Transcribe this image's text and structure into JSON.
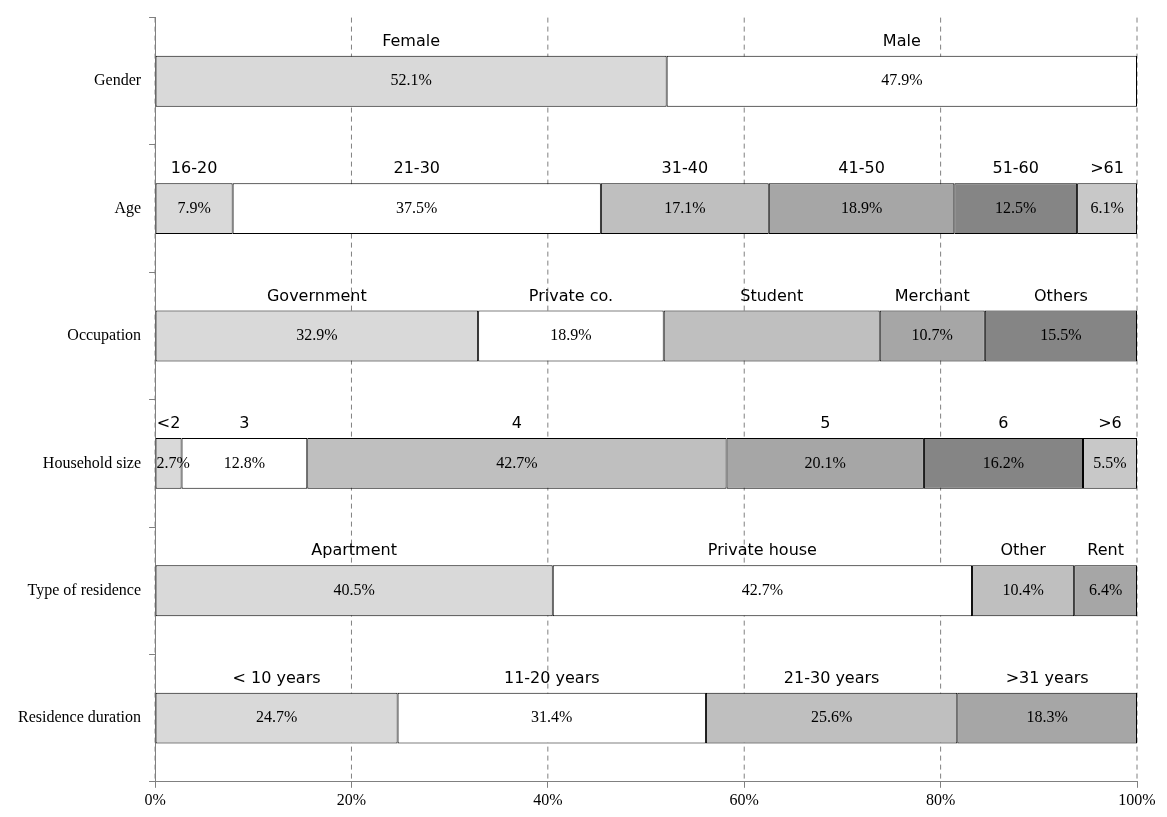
{
  "chart_data": {
    "type": "bar",
    "orientation": "horizontal",
    "stacked": true,
    "grid": "x",
    "categories": [
      "Gender",
      "Age",
      "Occupation",
      "Household size",
      "Type of residence",
      "Residence duration"
    ],
    "series": [
      {
        "color": "#d9d9d9",
        "values": [
          52.1,
          7.9,
          32.9,
          2.7,
          40.5,
          24.7
        ],
        "value_labels": [
          "52.1%",
          "7.9%",
          "32.9%",
          "2.7%",
          "40.5%",
          "24.7%"
        ]
      },
      {
        "color": "#ffffff",
        "values": [
          47.9,
          37.5,
          18.9,
          12.8,
          42.7,
          31.4
        ],
        "value_labels": [
          "47.9%",
          "37.5%",
          "18.9%",
          "12.8%",
          "42.7%",
          "31.4%"
        ]
      },
      {
        "color": "#bfbfbf",
        "values": [
          null,
          17.1,
          22.0,
          42.7,
          10.4,
          25.6
        ],
        "value_labels": [
          null,
          "17.1%",
          null,
          "42.7%",
          "10.4%",
          "25.6%"
        ]
      },
      {
        "color": "#a6a6a6",
        "values": [
          null,
          18.9,
          10.7,
          20.1,
          6.4,
          18.3
        ],
        "value_labels": [
          null,
          "18.9%",
          "10.7%",
          "20.1%",
          "6.4%",
          "18.3%"
        ]
      },
      {
        "color": "#858585",
        "values": [
          null,
          12.5,
          15.5,
          16.2,
          null,
          null
        ],
        "value_labels": [
          null,
          "12.5%",
          "15.5%",
          "16.2%",
          null,
          null
        ]
      },
      {
        "color": "#c8c8c8",
        "values": [
          null,
          6.1,
          null,
          5.5,
          null,
          null
        ],
        "value_labels": [
          null,
          "6.1%",
          null,
          "5.5%",
          null,
          null
        ]
      }
    ],
    "xlim": [
      0,
      100
    ],
    "xticks": [
      {
        "value": 0,
        "label": "0%"
      },
      {
        "value": 20,
        "label": "20%"
      },
      {
        "value": 40,
        "label": "40%"
      },
      {
        "value": 60,
        "label": "60%"
      },
      {
        "value": 80,
        "label": "80%"
      },
      {
        "value": 100,
        "label": "100%"
      }
    ],
    "annotations": [
      "Female",
      "Male",
      "16-20",
      "21-30",
      "31-40",
      "41-50",
      "51-60",
      ">61",
      "Government",
      "Private co.",
      "Student",
      "Merchant",
      "Others",
      "<2",
      "3",
      "4",
      "5",
      "6",
      ">6",
      "Apartment",
      "Private house",
      "Other",
      "Rent",
      "< 10 years",
      "11-20 years",
      "21-30 years",
      ">31 years"
    ]
  }
}
